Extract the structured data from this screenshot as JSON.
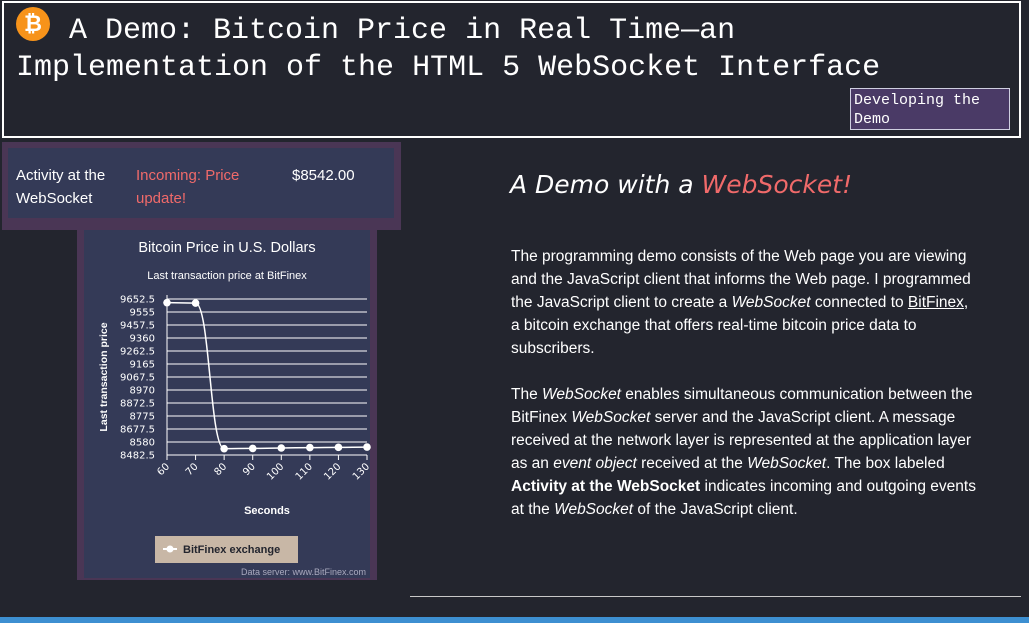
{
  "header": {
    "title_line1": "A Demo: Bitcoin Price in Real Time—an",
    "title_line2": "Implementation of the HTML 5 WebSocket Interface",
    "logo_symbol": "₿",
    "logo_color": "#f7931a",
    "dev_button_label": "Developing the Demo"
  },
  "activity": {
    "label": "Activity at the WebSocket",
    "incoming": "Incoming: Price update!",
    "price": "$8542.00"
  },
  "main": {
    "heading_prefix": "A Demo with a ",
    "heading_accent": "WebSocket!",
    "p1_a": "The programming demo consists of the Web page you are viewing and the JavaScript client that informs the Web page. I programmed the JavaScript client to create a ",
    "p1_em": "WebSocket",
    "p1_b": " connected to ",
    "p1_link": "BitFinex",
    "p1_c": ", a bitcoin exchange that offers real-time bitcoin price data to subscribers.",
    "p2_a": "The ",
    "p2_em1": "WebSocket",
    "p2_b": " enables simultaneous communication between the BitFinex ",
    "p2_em2": "WebSocket",
    "p2_c": " server and the JavaScript client. A message received at the network layer is represented at the application layer as an ",
    "p2_em3": "event object",
    "p2_d": " received at the ",
    "p2_em4": "WebSocket",
    "p2_e": ". The box labeled ",
    "p2_strong": "Activity at the WebSocket",
    "p2_f": " indicates incoming and outgoing events at the ",
    "p2_em5": "WebSocket",
    "p2_g": " of the JavaScript client."
  },
  "chart_data": {
    "type": "line",
    "title": "Bitcoin Price in U.S. Dollars",
    "subtitle": "Last transaction price at BitFinex",
    "xlabel": "Seconds",
    "ylabel": "Last transaction price",
    "x": [
      60,
      70,
      80,
      90,
      100,
      110,
      120,
      130
    ],
    "y_ticks": [
      "9652.5",
      "9555",
      "9457.5",
      "9360",
      "9262.5",
      "9165",
      "9067.5",
      "8970",
      "8872.5",
      "8775",
      "8677.5",
      "8580",
      "8482.5"
    ],
    "ylim": [
      8482.5,
      9652.5
    ],
    "xlim": [
      60,
      130
    ],
    "grid": true,
    "legend_placement": "bottom-left",
    "credit": "Data server: www.BitFinex.com",
    "series": [
      {
        "name": "BitFinex exchange",
        "values": [
          9625,
          9622,
          8530,
          8532,
          8535,
          8538,
          8540,
          8542
        ]
      }
    ]
  }
}
